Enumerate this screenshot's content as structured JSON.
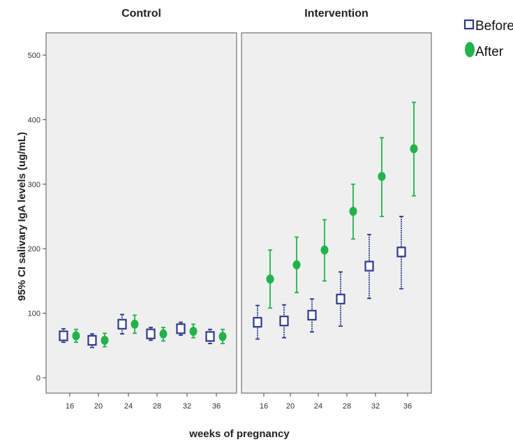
{
  "chart_data": {
    "type": "scatter",
    "subtype": "error-bar",
    "ylabel": "95% CI salivary IgA levels (ug/mL)",
    "xlabel": "weeks of pregnancy",
    "ylim": [
      0,
      500
    ],
    "yticks": [
      0,
      100,
      200,
      300,
      400,
      500
    ],
    "categories": [
      "16",
      "20",
      "24",
      "28",
      "32",
      "36"
    ],
    "legend": {
      "position": "top-right",
      "entries": [
        {
          "key": "before",
          "label": "Before",
          "marker": "open-square",
          "color": "#2e3a8c"
        },
        {
          "key": "after",
          "label": "After",
          "marker": "filled-circle",
          "color": "#22b24c"
        }
      ]
    },
    "panels": [
      {
        "title": "Control",
        "series": [
          {
            "key": "before",
            "mean": [
              65,
              58,
              83,
              68,
              76,
              64
            ],
            "lower": [
              55,
              47,
              68,
              58,
              66,
              53
            ],
            "upper": [
              76,
              68,
              98,
              78,
              86,
              75
            ]
          },
          {
            "key": "after",
            "mean": [
              65,
              58,
              83,
              68,
              72,
              64
            ],
            "lower": [
              55,
              48,
              69,
              57,
              62,
              53
            ],
            "upper": [
              75,
              69,
              97,
              78,
              83,
              75
            ]
          }
        ]
      },
      {
        "title": "Intervention",
        "series": [
          {
            "key": "before",
            "mean": [
              86,
              88,
              97,
              122,
              173,
              195
            ],
            "lower": [
              60,
              62,
              71,
              80,
              123,
              138
            ],
            "upper": [
              112,
              113,
              122,
              164,
              222,
              250
            ]
          },
          {
            "key": "after",
            "mean": [
              153,
              175,
              198,
              258,
              312,
              355
            ],
            "lower": [
              108,
              132,
              150,
              215,
              250,
              282
            ],
            "upper": [
              198,
              218,
              245,
              300,
              372,
              427
            ]
          }
        ]
      }
    ],
    "grid": false,
    "background": "#efefef"
  }
}
